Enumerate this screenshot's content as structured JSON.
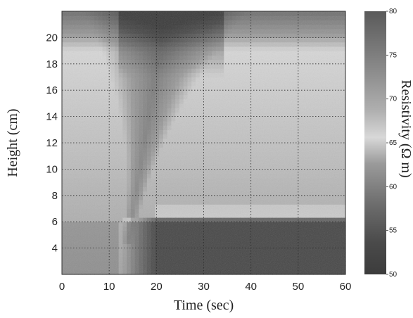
{
  "chart_data": {
    "type": "heatmap",
    "title": "",
    "xlabel": "Time (sec)",
    "ylabel": "Height (cm)",
    "xlim": [
      0,
      60
    ],
    "ylim": [
      2,
      22
    ],
    "x_ticks": [
      0,
      10,
      20,
      30,
      40,
      50,
      60
    ],
    "y_ticks": [
      4,
      6,
      8,
      10,
      12,
      14,
      16,
      18,
      20
    ],
    "grid": true,
    "grid_style": "dotted",
    "colorbar": {
      "label": "Resistivity (Ω m)",
      "range": [
        50,
        80
      ],
      "ticks": [
        50,
        55,
        60,
        65,
        70,
        75,
        80
      ],
      "colors": {
        "low": "#3a3a3a",
        "high": "#dcdcdc"
      }
    },
    "field_description": {
      "baseline_resistivity": 66,
      "top_band_resistivity": 55,
      "bottom_region": {
        "resistivity": 53,
        "after_time": 20,
        "below_height": 6.5
      },
      "plume": {
        "tip_time": 14,
        "tip_height": 4.5,
        "widens_to_top_time": 20,
        "resistivity": 60
      }
    }
  }
}
